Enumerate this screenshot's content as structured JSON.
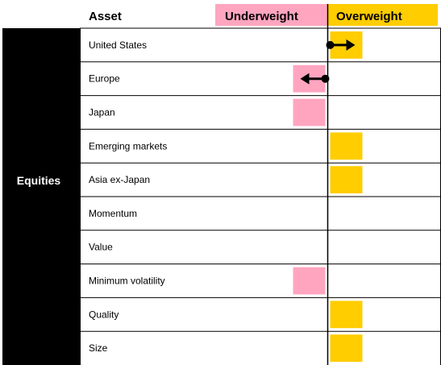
{
  "chart_data": {
    "type": "table",
    "headers": {
      "asset": "Asset",
      "underweight": "Underweight",
      "overweight": "Overweight"
    },
    "sector": "Equities",
    "rows": [
      {
        "label": "United States",
        "value": 1,
        "arrow": "right"
      },
      {
        "label": "Europe",
        "value": -1,
        "arrow": "left"
      },
      {
        "label": "Japan",
        "value": -1,
        "arrow": null
      },
      {
        "label": "Emerging markets",
        "value": 1,
        "arrow": null
      },
      {
        "label": "Asia ex-Japan",
        "value": 1,
        "arrow": null
      },
      {
        "label": "Momentum",
        "value": 0,
        "arrow": null
      },
      {
        "label": "Value",
        "value": 0,
        "arrow": null
      },
      {
        "label": "Minimum volatility",
        "value": -1,
        "arrow": null
      },
      {
        "label": "Quality",
        "value": 1,
        "arrow": null
      },
      {
        "label": "Size",
        "value": 1,
        "arrow": null
      }
    ],
    "colors": {
      "underweight": "#ffa5c0",
      "overweight": "#ffcd00",
      "sector_bg": "#000000"
    }
  }
}
